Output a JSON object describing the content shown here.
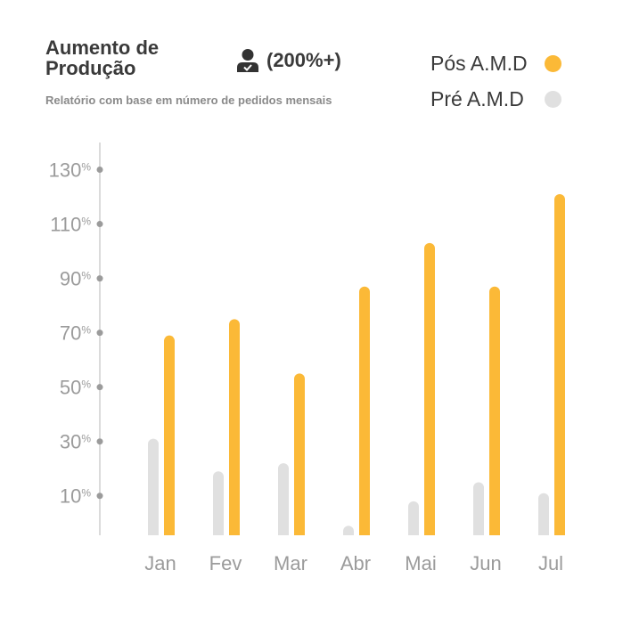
{
  "header": {
    "title": "Aumento de\nProdução",
    "badge": "(200%+)",
    "badge_icon": "user-check-icon",
    "subtitle": "Relatório com base em número de pedidos mensais"
  },
  "colors": {
    "pos": "#fbb937",
    "pre": "#e0e0e0",
    "axis": "#cfcfcf",
    "tick_dot": "#9b9b9b"
  },
  "chart_data": {
    "type": "bar",
    "title": "Aumento de Produção",
    "subtitle": "Relatório com base em número de pedidos mensais",
    "categories": [
      "Jan",
      "Fev",
      "Mar",
      "Abr",
      "Mai",
      "Jun",
      "Jul"
    ],
    "series": [
      {
        "name": "Pré A.M.D",
        "values": [
          31,
          19,
          22,
          -1,
          8,
          15,
          11
        ]
      },
      {
        "name": "Pós A.M.D",
        "values": [
          69,
          75,
          55,
          87,
          103,
          87,
          121
        ]
      }
    ],
    "y_ticks": [
      "10",
      "30",
      "50",
      "70",
      "90",
      "110",
      "130"
    ],
    "y_tick_suffix": "%",
    "ylim": [
      -4.5,
      140
    ],
    "grid": false,
    "legend_position": "top-right"
  }
}
